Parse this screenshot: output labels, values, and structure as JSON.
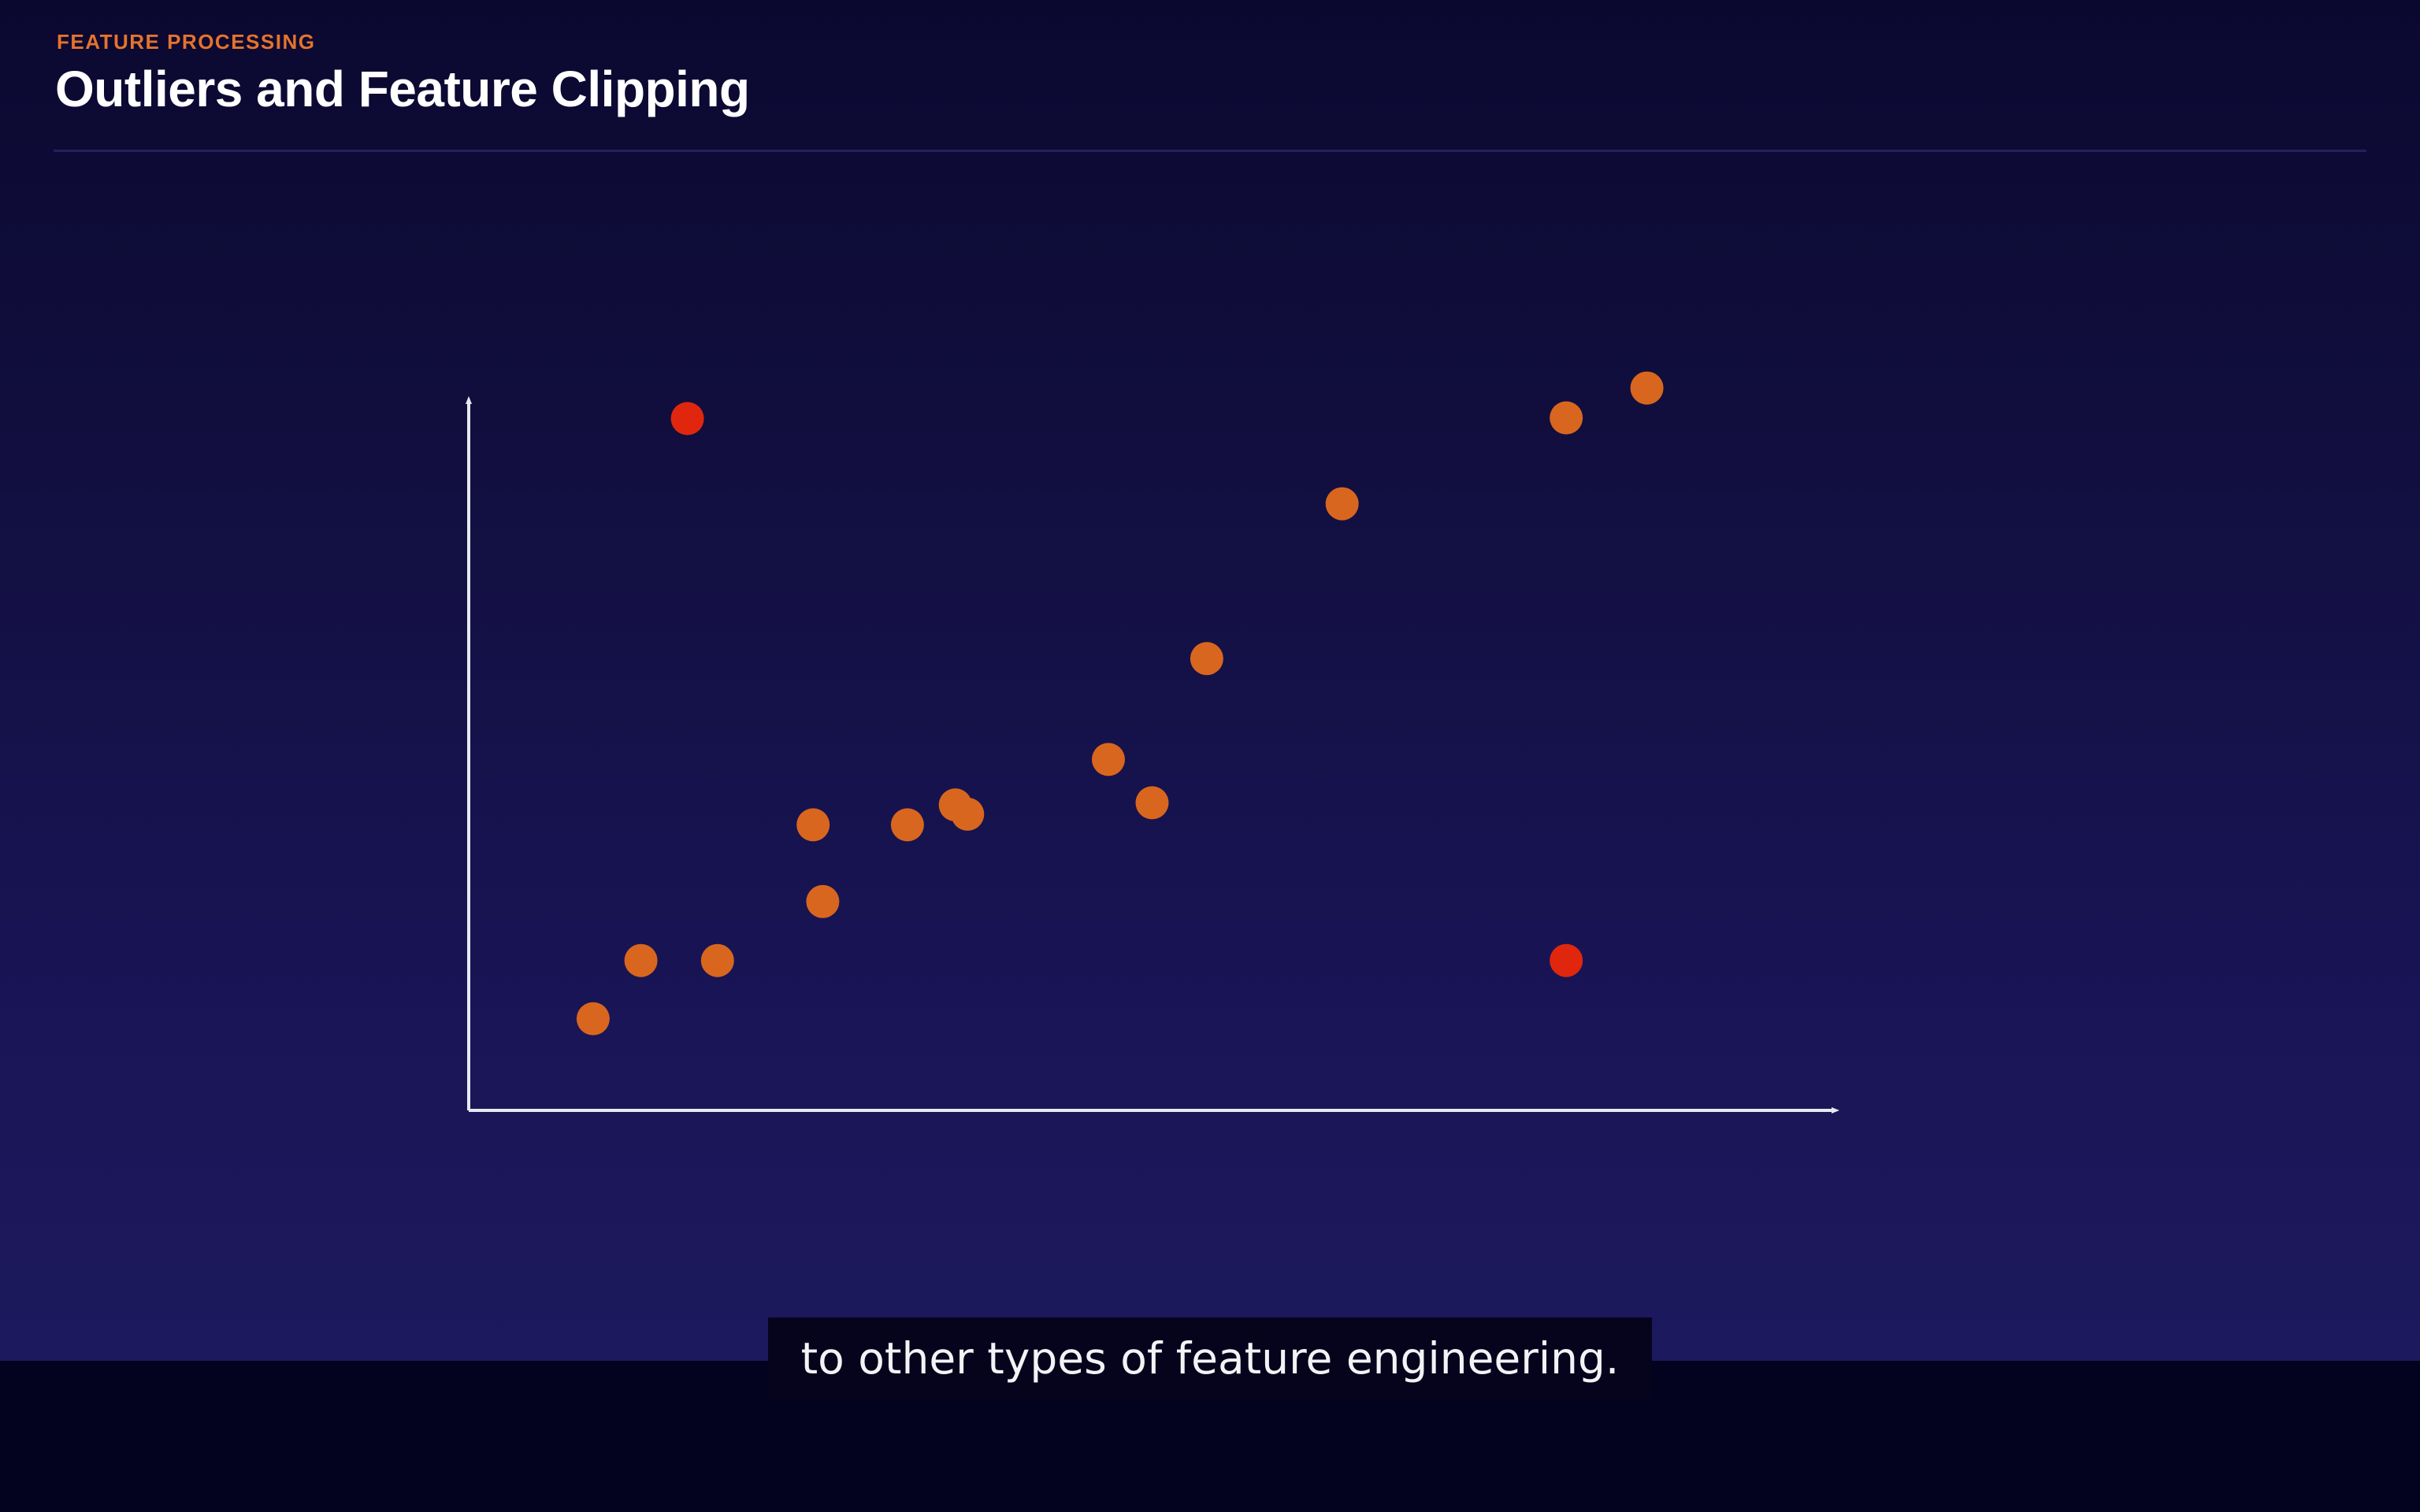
{
  "slide": {
    "eyebrow": "FEATURE PROCESSING",
    "title": "Outliers and Feature Clipping"
  },
  "caption": {
    "text": "to other types of feature engineering."
  },
  "colors": {
    "eyebrow": "#e4732d",
    "point": "#d9661e",
    "outlier": "#e0270e",
    "axis": "#e8e8f0"
  },
  "chart_data": {
    "type": "scatter",
    "title": "",
    "xlabel": "",
    "ylabel": "",
    "xlim": [
      0,
      100
    ],
    "ylim": [
      0,
      100
    ],
    "grid": false,
    "series": [
      {
        "role": "inliers",
        "points": [
          {
            "x": 9.1,
            "y": 12.9
          },
          {
            "x": 12.6,
            "y": 21.1
          },
          {
            "x": 18.2,
            "y": 21.1
          },
          {
            "x": 25.9,
            "y": 29.4
          },
          {
            "x": 25.2,
            "y": 40.2
          },
          {
            "x": 32.1,
            "y": 40.2
          },
          {
            "x": 35.6,
            "y": 43.0
          },
          {
            "x": 36.5,
            "y": 41.7
          },
          {
            "x": 46.8,
            "y": 49.4
          },
          {
            "x": 50.0,
            "y": 43.3
          },
          {
            "x": 54.0,
            "y": 63.6
          },
          {
            "x": 63.9,
            "y": 85.4
          },
          {
            "x": 80.3,
            "y": 97.5
          },
          {
            "x": 86.2,
            "y": 101.7
          }
        ]
      },
      {
        "role": "outliers",
        "points": [
          {
            "x": 16.0,
            "y": 97.4
          },
          {
            "x": 80.3,
            "y": 21.1
          }
        ]
      }
    ]
  }
}
